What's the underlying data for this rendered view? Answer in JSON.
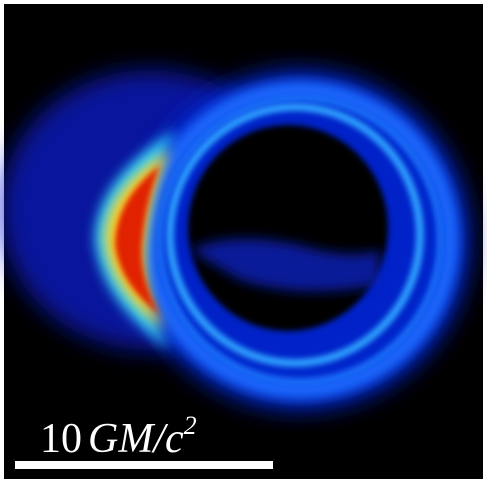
{
  "scale_bar": {
    "number": "10",
    "unit": "GM/c",
    "exponent": "2"
  }
}
